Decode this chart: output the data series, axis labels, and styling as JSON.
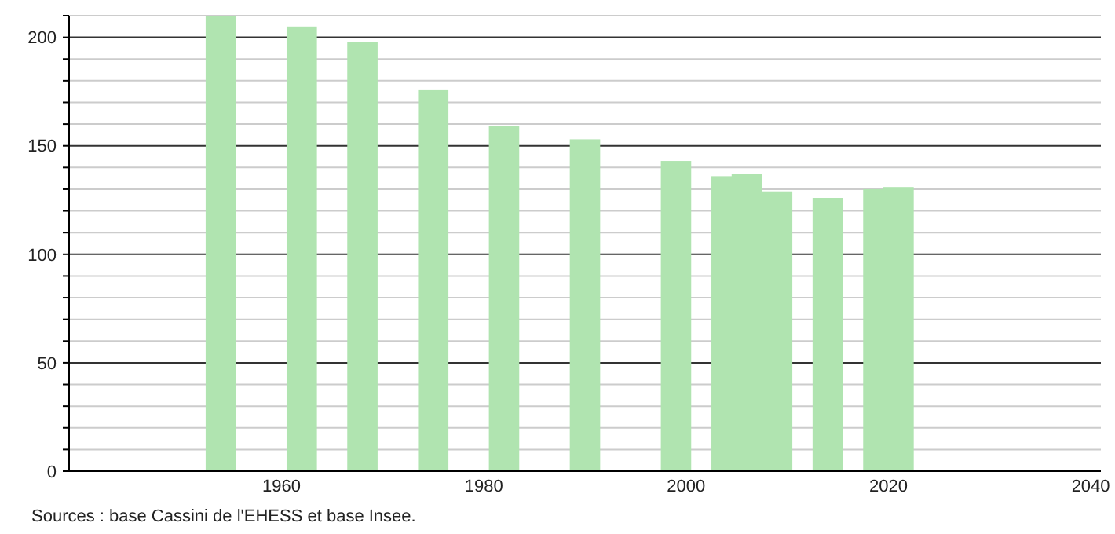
{
  "chart_data": {
    "type": "bar",
    "x": [
      1954,
      1962,
      1968,
      1975,
      1982,
      1990,
      1999,
      2004,
      2006,
      2009,
      2014,
      2019,
      2021
    ],
    "values": [
      210,
      205,
      198,
      176,
      159,
      153,
      143,
      136,
      137,
      129,
      126,
      130,
      131
    ],
    "color": "#b0e4b0",
    "xlim": [
      1939,
      2041
    ],
    "xticks": [
      1960,
      1980,
      2000,
      2020,
      2040
    ],
    "ylim": [
      0,
      210
    ],
    "yticks": [
      0,
      {
        "value": 10,
        "label": null
      },
      {
        "value": 20,
        "label": null
      },
      {
        "value": 30,
        "label": null
      },
      {
        "value": 40,
        "label": null
      },
      50,
      {
        "value": 60,
        "label": null
      },
      {
        "value": 70,
        "label": null
      },
      {
        "value": 80,
        "label": null
      },
      {
        "value": 90,
        "label": null
      },
      100,
      {
        "value": 110,
        "label": null
      },
      {
        "value": 120,
        "label": null
      },
      {
        "value": 130,
        "label": null
      },
      {
        "value": 140,
        "label": null
      },
      150,
      {
        "value": 160,
        "label": null
      },
      {
        "value": 170,
        "label": null
      },
      {
        "value": 180,
        "label": null
      },
      {
        "value": 190,
        "label": null
      },
      200,
      {
        "value": 210,
        "label": null
      }
    ],
    "grid": true,
    "annotations": [
      "Sources : base Cassini de l'EHESS et base Insee."
    ]
  }
}
